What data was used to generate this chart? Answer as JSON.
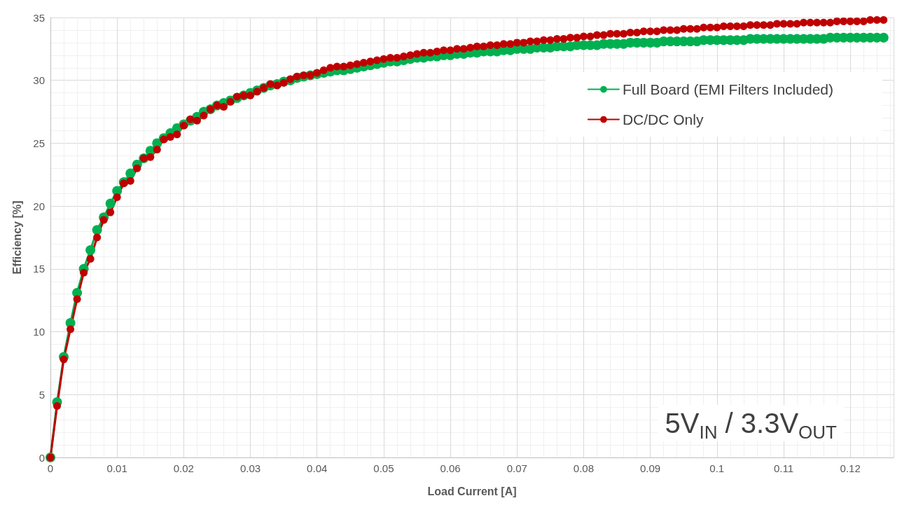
{
  "chart_data": {
    "type": "line",
    "xlabel": "Load Current [A]",
    "ylabel": "Efficiency [%]",
    "x": [
      0,
      0.001,
      0.002,
      0.003,
      0.004,
      0.005,
      0.006,
      0.007,
      0.008,
      0.009,
      0.01,
      0.011,
      0.012,
      0.013,
      0.014,
      0.015,
      0.016,
      0.017,
      0.018,
      0.019,
      0.02,
      0.021,
      0.022,
      0.023,
      0.024,
      0.025,
      0.026,
      0.027,
      0.028,
      0.029,
      0.03,
      0.031,
      0.032,
      0.033,
      0.034,
      0.035,
      0.036,
      0.037,
      0.038,
      0.039,
      0.04,
      0.041,
      0.042,
      0.043,
      0.044,
      0.045,
      0.046,
      0.047,
      0.048,
      0.049,
      0.05,
      0.051,
      0.052,
      0.053,
      0.054,
      0.055,
      0.056,
      0.057,
      0.058,
      0.059,
      0.06,
      0.061,
      0.062,
      0.063,
      0.064,
      0.065,
      0.066,
      0.067,
      0.068,
      0.069,
      0.07,
      0.071,
      0.072,
      0.073,
      0.074,
      0.075,
      0.076,
      0.077,
      0.078,
      0.079,
      0.08,
      0.081,
      0.082,
      0.083,
      0.084,
      0.085,
      0.086,
      0.087,
      0.088,
      0.089,
      0.09,
      0.091,
      0.092,
      0.093,
      0.094,
      0.095,
      0.096,
      0.097,
      0.098,
      0.099,
      0.1,
      0.101,
      0.102,
      0.103,
      0.104,
      0.105,
      0.106,
      0.107,
      0.108,
      0.109,
      0.11,
      0.111,
      0.112,
      0.113,
      0.114,
      0.115,
      0.116,
      0.117,
      0.118,
      0.119,
      0.12,
      0.121,
      0.122,
      0.123,
      0.124,
      0.125
    ],
    "series": [
      {
        "name": "Full Board (EMI Filters Included)",
        "color": "#00b050",
        "values": [
          0,
          4.4,
          8.0,
          10.7,
          13.1,
          15.0,
          16.5,
          18.1,
          19.1,
          20.2,
          21.2,
          21.9,
          22.6,
          23.3,
          23.8,
          24.4,
          25.0,
          25.4,
          25.8,
          26.2,
          26.5,
          26.8,
          27.1,
          27.5,
          27.7,
          28.0,
          28.2,
          28.4,
          28.6,
          28.8,
          29.0,
          29.2,
          29.4,
          29.6,
          29.7,
          29.9,
          30.0,
          30.2,
          30.3,
          30.4,
          30.5,
          30.6,
          30.7,
          30.8,
          30.8,
          30.9,
          31.0,
          31.1,
          31.2,
          31.3,
          31.4,
          31.5,
          31.5,
          31.6,
          31.7,
          31.8,
          31.8,
          31.9,
          31.9,
          32.0,
          32.0,
          32.1,
          32.1,
          32.2,
          32.2,
          32.3,
          32.3,
          32.3,
          32.4,
          32.4,
          32.5,
          32.5,
          32.5,
          32.6,
          32.6,
          32.6,
          32.7,
          32.7,
          32.7,
          32.8,
          32.8,
          32.8,
          32.8,
          32.9,
          32.9,
          32.9,
          32.9,
          33.0,
          33.0,
          33.0,
          33.0,
          33.0,
          33.1,
          33.1,
          33.1,
          33.1,
          33.1,
          33.1,
          33.2,
          33.2,
          33.2,
          33.2,
          33.2,
          33.2,
          33.2,
          33.3,
          33.3,
          33.3,
          33.3,
          33.3,
          33.3,
          33.3,
          33.3,
          33.3,
          33.3,
          33.3,
          33.3,
          33.4,
          33.4,
          33.4,
          33.4,
          33.4,
          33.4,
          33.4,
          33.4,
          33.4
        ]
      },
      {
        "name": "DC/DC Only",
        "color": "#c00000",
        "values": [
          0,
          4.1,
          7.8,
          10.2,
          12.6,
          14.7,
          15.8,
          17.5,
          18.9,
          19.5,
          20.7,
          21.8,
          22.0,
          23.0,
          23.8,
          23.9,
          24.5,
          25.3,
          25.5,
          25.7,
          26.4,
          26.9,
          26.8,
          27.2,
          27.7,
          28.0,
          27.9,
          28.3,
          28.7,
          28.8,
          28.8,
          29.1,
          29.4,
          29.7,
          29.6,
          29.8,
          30.1,
          30.3,
          30.4,
          30.4,
          30.6,
          30.8,
          31.0,
          31.1,
          31.1,
          31.2,
          31.3,
          31.4,
          31.5,
          31.6,
          31.7,
          31.8,
          31.8,
          31.9,
          32.0,
          32.1,
          32.2,
          32.2,
          32.3,
          32.4,
          32.4,
          32.5,
          32.5,
          32.6,
          32.7,
          32.7,
          32.8,
          32.8,
          32.9,
          32.9,
          33.0,
          33.0,
          33.1,
          33.1,
          33.2,
          33.2,
          33.3,
          33.3,
          33.4,
          33.4,
          33.5,
          33.5,
          33.6,
          33.6,
          33.7,
          33.7,
          33.7,
          33.8,
          33.8,
          33.9,
          33.9,
          33.9,
          34.0,
          34.0,
          34.0,
          34.1,
          34.1,
          34.1,
          34.2,
          34.2,
          34.2,
          34.3,
          34.3,
          34.3,
          34.3,
          34.4,
          34.4,
          34.4,
          34.4,
          34.5,
          34.5,
          34.5,
          34.5,
          34.6,
          34.6,
          34.6,
          34.6,
          34.6,
          34.7,
          34.7,
          34.7,
          34.7,
          34.7,
          34.8,
          34.8,
          34.8
        ]
      }
    ],
    "xlim": [
      0,
      0.1265
    ],
    "xticks": [
      0,
      0.01,
      0.02,
      0.03,
      0.04,
      0.05,
      0.06,
      0.07,
      0.08,
      0.09,
      0.1,
      0.11,
      0.12
    ],
    "ylim": [
      0,
      35
    ],
    "yticks": [
      0,
      5,
      10,
      15,
      20,
      25,
      30,
      35
    ],
    "grid": true,
    "legend": "top right",
    "marker": "circle",
    "line_style": "solid",
    "annotations": [
      "5V$_{IN}$ / 3.3V$_{OUT}$"
    ]
  }
}
